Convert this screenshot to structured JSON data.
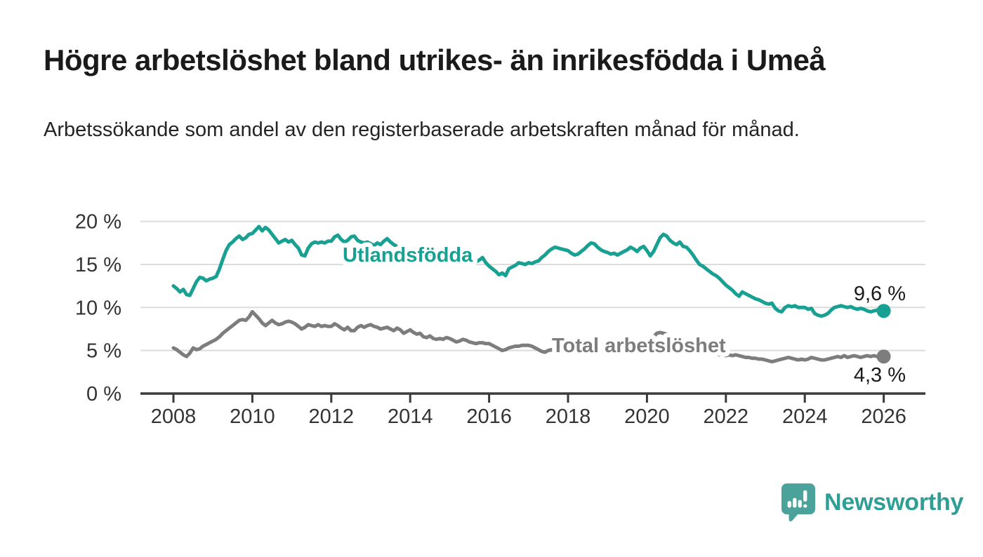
{
  "page": {
    "title": "Högre arbetslöshet bland utrikes- än inrikesfödda i Umeå",
    "subtitle": "Arbetssökande som andel av den registerbaserade arbetskraften månad för månad."
  },
  "branding": {
    "name": "Newsworthy",
    "icon": "newsworthy-speech-bubble-bar-chart-icon",
    "icon_color": "#4AA29A",
    "text_color": "#2F9E95"
  },
  "colors": {
    "title_text": "#1A1A1A",
    "axis_text": "#333333",
    "axis_line": "#3A3A3A",
    "gridline": "#DCDCDC",
    "value_label_text": "#1A1A1A"
  },
  "chart_data": {
    "type": "line",
    "x_unit": "month",
    "x_start_year": 2008,
    "points_per_year": 12,
    "x_tick_years": [
      2008,
      2010,
      2012,
      2014,
      2016,
      2018,
      2020,
      2022,
      2024,
      2026
    ],
    "y_tick_values": [
      0,
      5,
      10,
      15,
      20
    ],
    "y_tick_labels": [
      "0 %",
      "5 %",
      "10 %",
      "15 %",
      "20 %"
    ],
    "ylim": [
      0,
      20.5
    ],
    "grid": true,
    "legend_position": "inline-labels",
    "series": [
      {
        "name": "Utlandsfödda",
        "color": "#18A092",
        "end_label": "9,6 %",
        "last_value": 9.6,
        "values": [
          12.5,
          12.2,
          11.8,
          12.1,
          11.5,
          11.4,
          12.2,
          13.0,
          13.5,
          13.4,
          13.1,
          13.3,
          13.4,
          13.6,
          14.5,
          15.6,
          16.6,
          17.3,
          17.6,
          18.0,
          18.3,
          17.9,
          18.1,
          18.5,
          18.6,
          19.0,
          19.4,
          18.9,
          19.3,
          19.0,
          18.5,
          18.0,
          17.5,
          17.7,
          17.9,
          17.6,
          17.8,
          17.3,
          16.9,
          16.1,
          16.0,
          16.9,
          17.4,
          17.6,
          17.5,
          17.6,
          17.5,
          17.7,
          17.7,
          18.2,
          18.4,
          17.9,
          17.6,
          17.8,
          18.2,
          18.3,
          17.8,
          17.6,
          17.5,
          17.6,
          17.4,
          17.2,
          17.5,
          17.3,
          17.7,
          18.0,
          17.6,
          17.3,
          17.1,
          17.0,
          16.9,
          16.8,
          16.8,
          16.7,
          16.6,
          16.5,
          16.4,
          16.3,
          16.2,
          16.1,
          16.0,
          15.9,
          15.8,
          15.7,
          15.7,
          15.6,
          15.5,
          15.4,
          15.4,
          15.3,
          15.3,
          15.2,
          15.3,
          15.5,
          15.8,
          15.2,
          14.8,
          14.5,
          14.2,
          13.8,
          14.0,
          13.7,
          14.5,
          14.7,
          14.9,
          15.2,
          15.1,
          15.0,
          15.2,
          15.1,
          15.3,
          15.4,
          15.8,
          16.1,
          16.5,
          16.8,
          17.0,
          16.9,
          16.8,
          16.7,
          16.6,
          16.3,
          16.1,
          16.2,
          16.5,
          16.8,
          17.2,
          17.5,
          17.4,
          17.0,
          16.7,
          16.5,
          16.4,
          16.2,
          16.3,
          16.1,
          16.3,
          16.5,
          16.7,
          17.0,
          16.8,
          16.5,
          16.9,
          17.1,
          16.6,
          16.0,
          16.5,
          17.3,
          18.1,
          18.5,
          18.3,
          17.8,
          17.5,
          17.3,
          17.6,
          17.1,
          17.0,
          16.6,
          16.1,
          15.5,
          15.0,
          14.8,
          14.5,
          14.2,
          13.9,
          13.7,
          13.4,
          13.0,
          12.6,
          12.3,
          12.0,
          11.6,
          11.3,
          11.8,
          11.6,
          11.4,
          11.2,
          11.0,
          10.9,
          10.7,
          10.5,
          10.4,
          10.5,
          9.9,
          9.6,
          9.5,
          10.0,
          10.2,
          10.1,
          10.2,
          10.0,
          10.0,
          10.0,
          9.8,
          9.9,
          9.3,
          9.1,
          9.0,
          9.1,
          9.3,
          9.7,
          10.0,
          10.1,
          10.2,
          10.1,
          10.0,
          10.1,
          9.9,
          9.8,
          9.9,
          9.8,
          9.6,
          9.5,
          9.6,
          9.7,
          9.6,
          9.6
        ]
      },
      {
        "name": "Total arbetslöshet",
        "color": "#7D7D7D",
        "end_label": "4,3 %",
        "last_value": 4.3,
        "values": [
          5.3,
          5.1,
          4.8,
          4.5,
          4.3,
          4.7,
          5.3,
          5.1,
          5.2,
          5.5,
          5.7,
          5.9,
          6.1,
          6.3,
          6.6,
          7.0,
          7.3,
          7.6,
          7.9,
          8.2,
          8.5,
          8.6,
          8.5,
          8.9,
          9.5,
          9.1,
          8.7,
          8.2,
          7.9,
          8.2,
          8.5,
          8.2,
          8.0,
          8.1,
          8.3,
          8.4,
          8.3,
          8.1,
          7.8,
          7.5,
          7.7,
          8.0,
          7.9,
          7.8,
          8.0,
          7.8,
          7.9,
          7.8,
          7.8,
          8.1,
          7.9,
          7.6,
          7.4,
          7.7,
          7.3,
          7.3,
          7.7,
          7.9,
          7.7,
          7.9,
          8.0,
          7.8,
          7.7,
          7.5,
          7.6,
          7.7,
          7.5,
          7.3,
          7.6,
          7.4,
          7.0,
          7.2,
          7.4,
          7.1,
          6.9,
          7.0,
          6.6,
          6.5,
          6.7,
          6.4,
          6.3,
          6.4,
          6.3,
          6.5,
          6.4,
          6.2,
          6.0,
          6.1,
          6.3,
          6.2,
          6.0,
          5.9,
          5.8,
          5.9,
          5.9,
          5.8,
          5.8,
          5.6,
          5.4,
          5.2,
          5.0,
          5.1,
          5.3,
          5.4,
          5.5,
          5.5,
          5.6,
          5.6,
          5.6,
          5.5,
          5.3,
          5.1,
          4.9,
          4.8,
          5.0,
          5.1,
          5.0,
          5.1,
          5.0,
          5.0,
          4.9,
          4.9,
          4.8,
          4.8,
          4.9,
          4.8,
          4.8,
          4.7,
          4.8,
          4.8,
          4.9,
          4.9,
          4.8,
          4.8,
          4.9,
          5.0,
          5.1,
          5.2,
          5.3,
          5.4,
          5.5,
          5.6,
          5.7,
          5.9,
          6.1,
          6.3,
          6.6,
          7.0,
          7.1,
          7.0,
          6.9,
          6.7,
          6.5,
          6.3,
          6.1,
          5.9,
          5.7,
          5.5,
          5.3,
          5.1,
          5.0,
          4.9,
          4.8,
          4.7,
          4.6,
          4.6,
          4.5,
          4.5,
          4.4,
          4.5,
          4.4,
          4.5,
          4.4,
          4.3,
          4.2,
          4.2,
          4.1,
          4.1,
          4.0,
          4.0,
          3.9,
          3.8,
          3.7,
          3.8,
          3.9,
          4.0,
          4.1,
          4.2,
          4.1,
          4.0,
          3.9,
          4.0,
          3.9,
          4.0,
          4.2,
          4.1,
          4.0,
          3.9,
          3.9,
          4.0,
          4.1,
          4.2,
          4.3,
          4.2,
          4.4,
          4.2,
          4.3,
          4.4,
          4.3,
          4.2,
          4.3,
          4.4,
          4.3,
          4.4,
          4.3,
          4.3,
          4.3
        ]
      }
    ]
  }
}
